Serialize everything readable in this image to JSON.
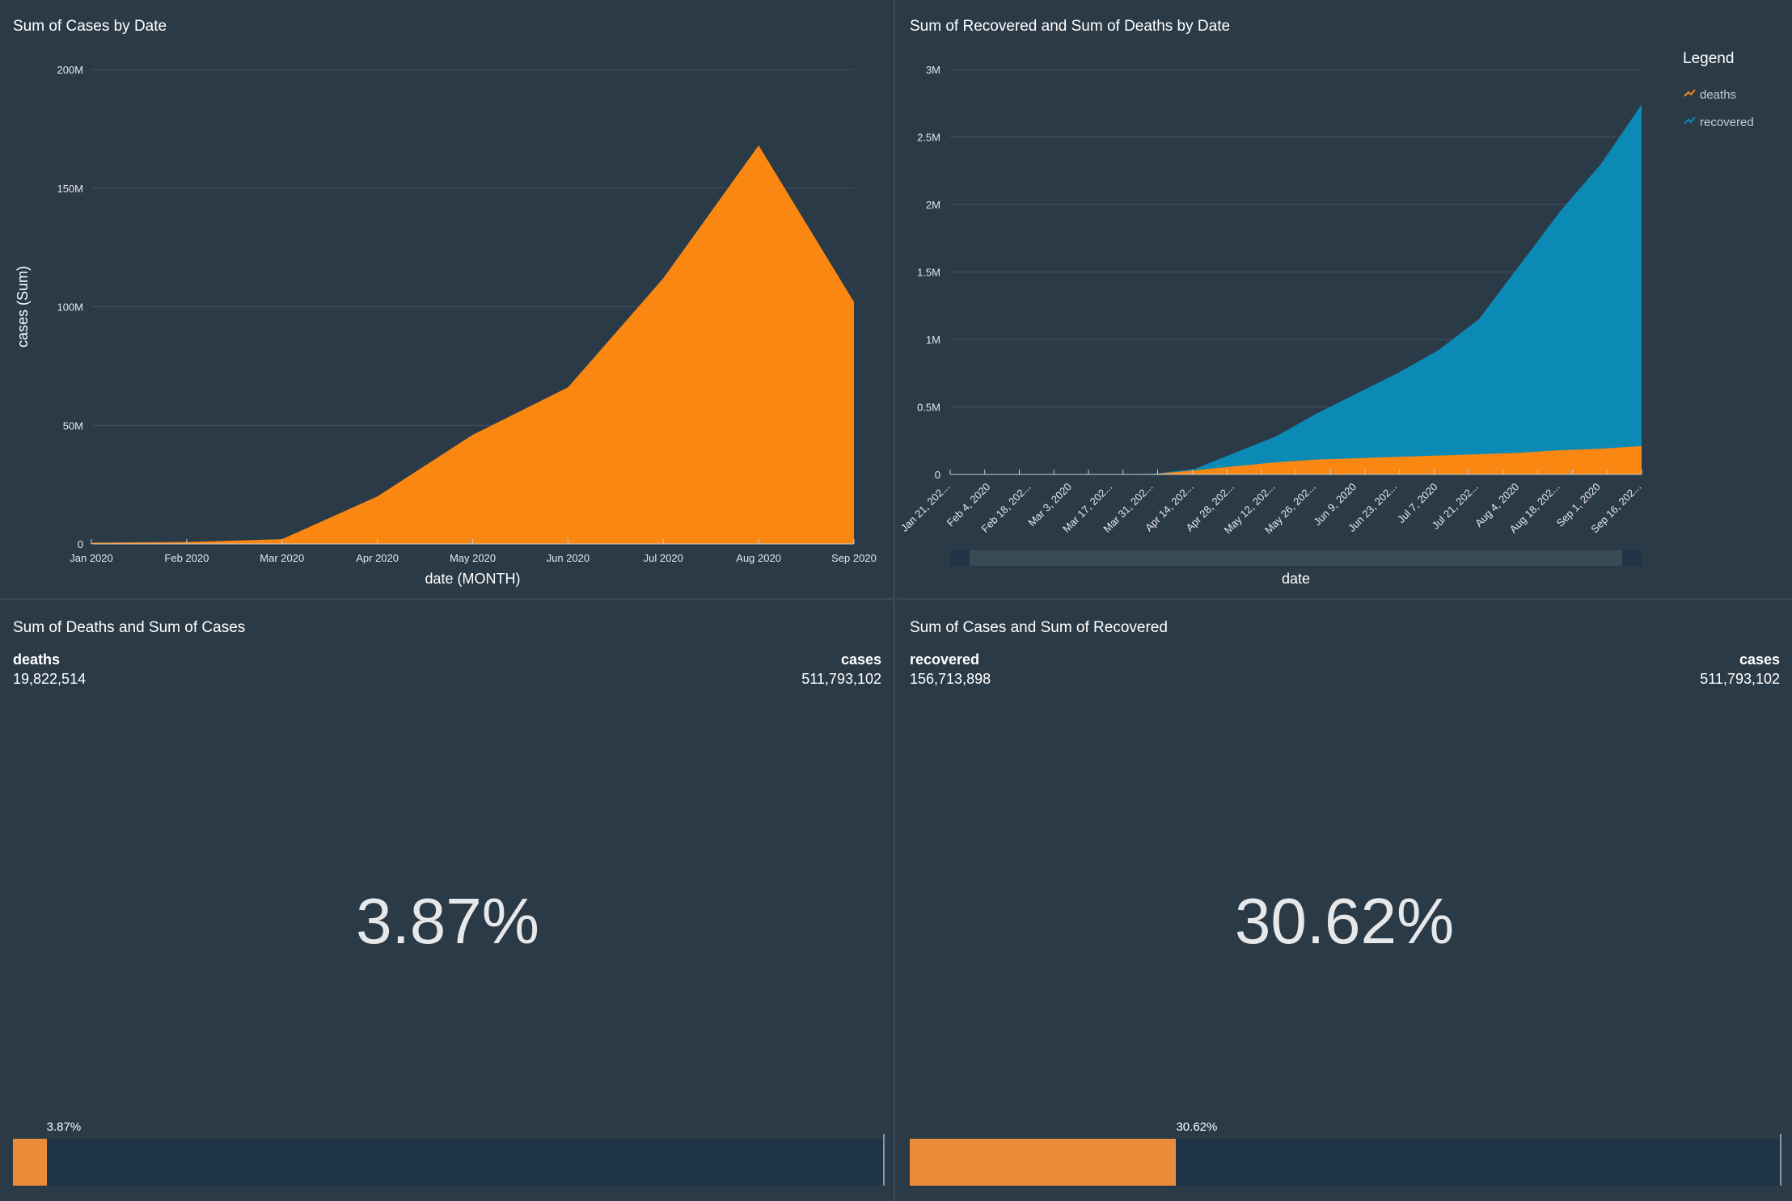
{
  "panels": {
    "cases_by_date": {
      "title": "Sum of Cases by Date"
    },
    "recovered_deaths_by_date": {
      "title": "Sum of Recovered and Sum of Deaths by Date",
      "legend_title": "Legend"
    },
    "deaths_cases": {
      "title": "Sum of Deaths and Sum of Cases",
      "left_label": "deaths",
      "left_value": "19,822,514",
      "right_label": "cases",
      "right_value": "511,793,102",
      "percent": "3.87%",
      "fraction": 0.0387
    },
    "cases_recovered": {
      "title": "Sum of Cases and Sum of Recovered",
      "left_label": "recovered",
      "left_value": "156,713,898",
      "right_label": "cases",
      "right_value": "511,793,102",
      "percent": "30.62%",
      "fraction": 0.3062
    }
  },
  "colors": {
    "cases": "#f98712",
    "recovered": "#0a8ab5",
    "deaths": "#f98712",
    "bar": "#eb8c3a"
  },
  "chart_data": [
    {
      "type": "area",
      "title": "Sum of Cases by Date",
      "xlabel": "date (MONTH)",
      "ylabel": "cases (Sum)",
      "categories": [
        "Jan 2020",
        "Feb 2020",
        "Mar 2020",
        "Apr 2020",
        "May 2020",
        "Jun 2020",
        "Jul 2020",
        "Aug 2020",
        "Sep 2020"
      ],
      "values": [
        0.5,
        0.8,
        2,
        20,
        46,
        66,
        112,
        168,
        102
      ],
      "value_unit": "M",
      "y_ticks": [
        "0",
        "50M",
        "100M",
        "150M",
        "200M"
      ],
      "ylim": [
        0,
        200
      ],
      "grid": true
    },
    {
      "type": "area",
      "title": "Sum of Recovered and Sum of Deaths by Date",
      "xlabel": "date",
      "x_tick_labels": [
        "Jan 21, 202...",
        "Feb 4, 2020",
        "Feb 18, 202...",
        "Mar 3, 2020",
        "Mar 17, 202...",
        "Mar 31, 202...",
        "Apr 14, 202...",
        "Apr 28, 202...",
        "May 12, 202...",
        "May 26, 202...",
        "Jun 9, 2020",
        "Jun 23, 202...",
        "Jul 7, 2020",
        "Jul 21, 202...",
        "Aug 4, 2020",
        "Aug 18, 202...",
        "Sep 1, 2020",
        "Sep 16, 202..."
      ],
      "y_ticks": [
        "0",
        "0.5M",
        "1M",
        "1.5M",
        "2M",
        "2.5M",
        "3M"
      ],
      "ylim": [
        0,
        3
      ],
      "value_unit": "M",
      "legend": "top-right",
      "series": [
        {
          "name": "deaths",
          "x": [
            "2020-01-21",
            "2020-02-04",
            "2020-02-18",
            "2020-03-03",
            "2020-03-17",
            "2020-03-31",
            "2020-04-14",
            "2020-04-28",
            "2020-05-12",
            "2020-05-26",
            "2020-06-09",
            "2020-06-23",
            "2020-07-07",
            "2020-07-21",
            "2020-08-04",
            "2020-08-18",
            "2020-09-01",
            "2020-09-16"
          ],
          "values": [
            0,
            0,
            0,
            0,
            0,
            0.003,
            0.03,
            0.06,
            0.09,
            0.11,
            0.12,
            0.13,
            0.14,
            0.15,
            0.16,
            0.18,
            0.19,
            0.21
          ]
        },
        {
          "name": "recovered",
          "x": [
            "2020-01-21",
            "2020-02-04",
            "2020-02-18",
            "2020-03-03",
            "2020-03-17",
            "2020-03-31",
            "2020-04-14",
            "2020-04-28",
            "2020-05-12",
            "2020-05-26",
            "2020-06-09",
            "2020-06-23",
            "2020-07-07",
            "2020-07-21",
            "2020-08-04",
            "2020-08-18",
            "2020-09-01",
            "2020-09-16"
          ],
          "values": [
            0,
            0,
            0,
            0,
            0,
            0.005,
            0.04,
            0.16,
            0.28,
            0.45,
            0.6,
            0.75,
            0.92,
            1.15,
            1.55,
            1.95,
            2.3,
            2.74
          ]
        }
      ],
      "stacked": false,
      "grid": true
    }
  ]
}
